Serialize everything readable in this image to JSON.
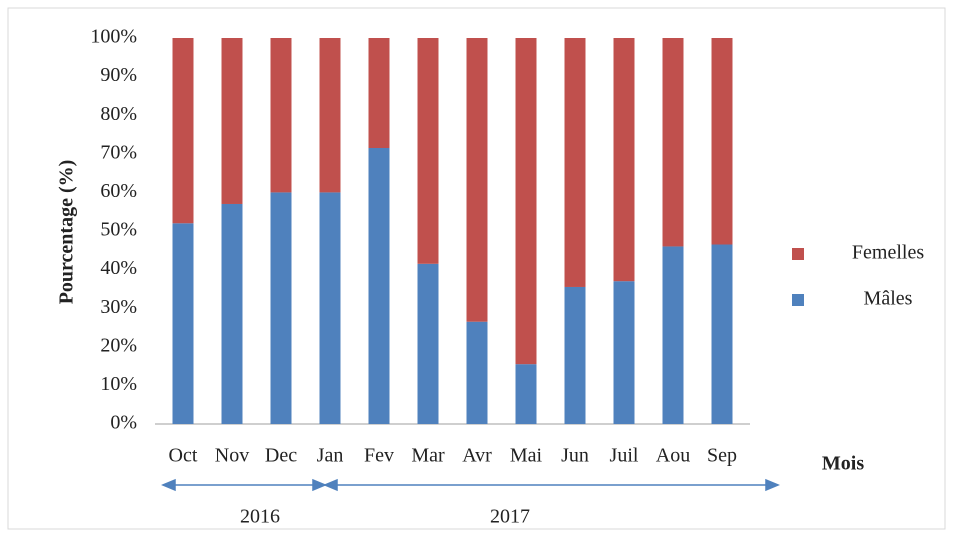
{
  "chart_data": {
    "type": "bar",
    "stacked": true,
    "y_label": "Pourcentage (%)",
    "x_label": "Mois",
    "categories": [
      "Oct",
      "Nov",
      "Dec",
      "Jan",
      "Fev",
      "Mar",
      "Avr",
      "Mai",
      "Jun",
      "Juil",
      "Aou",
      "Sep"
    ],
    "series": [
      {
        "name": "Mâles",
        "color": "#4f81bd",
        "values": [
          52,
          57,
          60,
          60,
          71.5,
          41.5,
          26.5,
          15.5,
          35.5,
          37,
          46,
          46.5
        ]
      },
      {
        "name": "Femelles",
        "color": "#c0504d",
        "values": [
          48,
          43,
          40,
          40,
          28.5,
          58.5,
          73.5,
          84.5,
          64.5,
          63,
          54,
          53.5
        ]
      }
    ],
    "ylim": [
      0,
      100
    ],
    "yticks": [
      {
        "value": 0,
        "label": "0%"
      },
      {
        "value": 10,
        "label": "10%"
      },
      {
        "value": 20,
        "label": "20%"
      },
      {
        "value": 30,
        "label": "30%"
      },
      {
        "value": 40,
        "label": "40%"
      },
      {
        "value": 50,
        "label": "50%"
      },
      {
        "value": 60,
        "label": "60%"
      },
      {
        "value": 70,
        "label": "70%"
      },
      {
        "value": 80,
        "label": "80%"
      },
      {
        "value": 90,
        "label": "90%"
      },
      {
        "value": 100,
        "label": "100%"
      }
    ],
    "grid": false,
    "legend": "right",
    "annotations": [
      "2016",
      "2017"
    ]
  }
}
